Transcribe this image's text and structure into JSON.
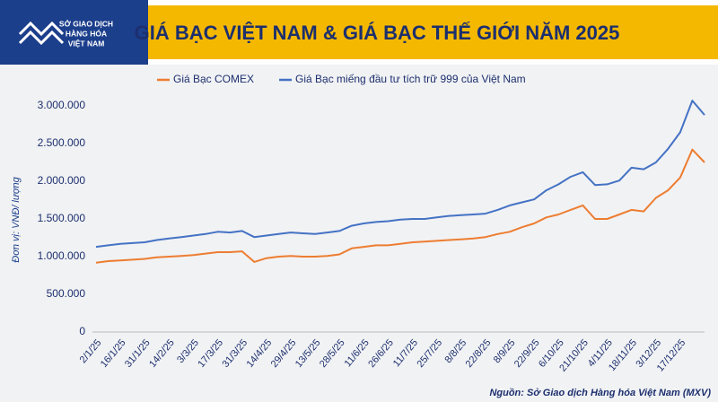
{
  "header": {
    "logo_lines": [
      "SỞ GIAO DỊCH",
      "HÀNG HÓA",
      "VIỆT NAM"
    ]
  },
  "chart_data": {
    "type": "line",
    "title": "GIÁ BẠC VIỆT NAM & GIÁ BẠC THẾ GIỚI NĂM 2025",
    "y_label": "Đơn vị: VNĐ/ lượng",
    "source": "Nguồn: Sở Giao dịch Hàng hóa Việt Nam (MXV)",
    "categories": [
      "2/1/25",
      null,
      "16/1/25",
      null,
      "31/1/25",
      null,
      "14/2/25",
      null,
      "3/3/25",
      null,
      "17/3/25",
      null,
      "31/3/25",
      null,
      "14/4/25",
      null,
      "29/4/25",
      null,
      "13/5/25",
      null,
      "28/5/25",
      null,
      "11/6/25",
      null,
      "26/6/25",
      null,
      "11/7/25",
      null,
      "25/7/25",
      null,
      "8/8/25",
      null,
      "22/8/25",
      null,
      "8/9/25",
      null,
      "22/9/25",
      null,
      "6/10/25",
      null,
      "21/10/25",
      null,
      "4/11/25",
      null,
      "18/11/25",
      null,
      "3/12/25",
      null,
      "17/12/25",
      null,
      null
    ],
    "series": [
      {
        "name": "Giá Bạc COMEX",
        "color": "#ed7d31",
        "values": [
          920000,
          940000,
          950000,
          960000,
          970000,
          990000,
          1000000,
          1010000,
          1020000,
          1040000,
          1060000,
          1060000,
          1070000,
          930000,
          980000,
          1000000,
          1010000,
          1000000,
          1000000,
          1010000,
          1030000,
          1110000,
          1130000,
          1150000,
          1150000,
          1170000,
          1190000,
          1200000,
          1210000,
          1220000,
          1230000,
          1240000,
          1260000,
          1300000,
          1330000,
          1390000,
          1440000,
          1520000,
          1560000,
          1620000,
          1680000,
          1500000,
          1500000,
          1560000,
          1620000,
          1600000,
          1780000,
          1880000,
          2050000,
          2420000,
          2250000
        ]
      },
      {
        "name": "Giá Bạc miếng đầu tư tích trữ 999 của Việt Nam",
        "color": "#4472c4",
        "values": [
          1130000,
          1150000,
          1170000,
          1180000,
          1190000,
          1220000,
          1240000,
          1260000,
          1280000,
          1300000,
          1330000,
          1320000,
          1340000,
          1260000,
          1280000,
          1300000,
          1320000,
          1310000,
          1300000,
          1320000,
          1340000,
          1410000,
          1440000,
          1460000,
          1470000,
          1490000,
          1500000,
          1500000,
          1520000,
          1540000,
          1550000,
          1560000,
          1570000,
          1620000,
          1680000,
          1720000,
          1760000,
          1880000,
          1960000,
          2060000,
          2120000,
          1950000,
          1960000,
          2010000,
          2180000,
          2160000,
          2250000,
          2430000,
          2650000,
          3070000,
          2880000
        ]
      }
    ],
    "ylim": [
      0,
      3000000
    ],
    "yticks": [
      0,
      {
        "value": 500000,
        "label": "500.000"
      },
      {
        "value": 1000000,
        "label": "1.000.000"
      },
      {
        "value": 1500000,
        "label": "1.500.000"
      },
      {
        "value": 2000000,
        "label": "2.000.000"
      },
      {
        "value": 2500000,
        "label": "2.500.000"
      },
      {
        "value": 3000000,
        "label": "3.000.000"
      }
    ],
    "grid": false
  }
}
